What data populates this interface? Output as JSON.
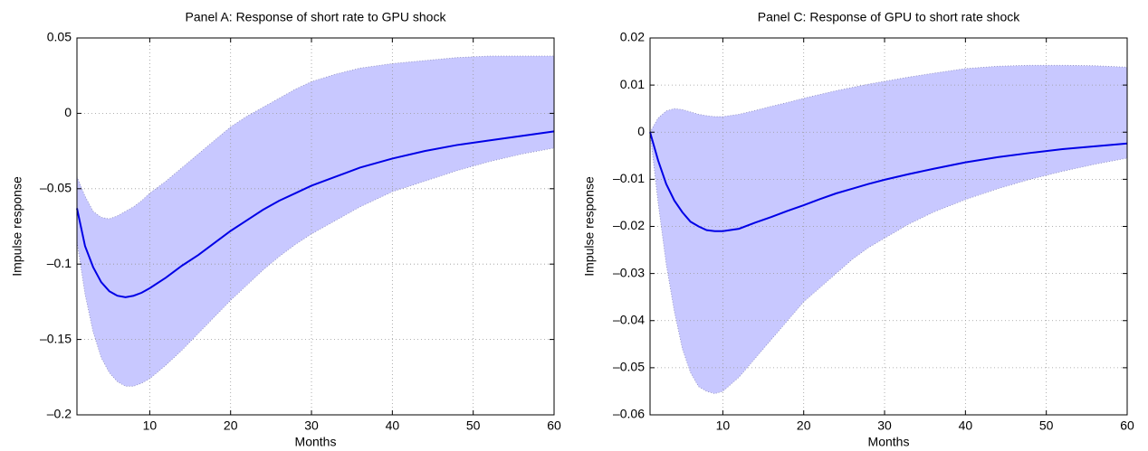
{
  "chart_data": [
    {
      "type": "line-band",
      "title": "Panel A: Response of short rate to GPU shock",
      "x_label": "Months",
      "y_label": "Impulse response",
      "x": [
        1,
        2,
        3,
        4,
        5,
        6,
        7,
        8,
        9,
        10,
        12,
        14,
        16,
        18,
        20,
        22,
        24,
        26,
        28,
        30,
        33,
        36,
        40,
        44,
        48,
        52,
        56,
        60
      ],
      "values": [
        -0.063,
        -0.088,
        -0.102,
        -0.112,
        -0.118,
        -0.121,
        -0.122,
        -0.121,
        -0.119,
        -0.116,
        -0.109,
        -0.101,
        -0.094,
        -0.086,
        -0.078,
        -0.071,
        -0.064,
        -0.058,
        -0.053,
        -0.048,
        -0.042,
        -0.036,
        -0.03,
        -0.025,
        -0.021,
        -0.018,
        -0.015,
        -0.012
      ],
      "band_upper": [
        -0.042,
        -0.055,
        -0.065,
        -0.069,
        -0.07,
        -0.068,
        -0.065,
        -0.062,
        -0.058,
        -0.053,
        -0.045,
        -0.036,
        -0.027,
        -0.018,
        -0.009,
        -0.002,
        0.004,
        0.01,
        0.016,
        0.021,
        0.026,
        0.03,
        0.033,
        0.035,
        0.037,
        0.038,
        0.038,
        0.038
      ],
      "band_lower": [
        -0.085,
        -0.12,
        -0.145,
        -0.162,
        -0.172,
        -0.178,
        -0.181,
        -0.181,
        -0.179,
        -0.176,
        -0.167,
        -0.157,
        -0.146,
        -0.135,
        -0.124,
        -0.114,
        -0.104,
        -0.095,
        -0.087,
        -0.08,
        -0.071,
        -0.062,
        -0.052,
        -0.045,
        -0.038,
        -0.032,
        -0.027,
        -0.023
      ],
      "color": "#0000e6",
      "band_color": "#c8c8ff",
      "xlim": [
        1,
        60
      ],
      "xticks": [
        10,
        20,
        30,
        40,
        50,
        60
      ],
      "ylim": [
        -0.2,
        0.05
      ],
      "yticks": [
        {
          "value": -0.2,
          "label": "–0.2"
        },
        {
          "value": -0.15,
          "label": "–0.15"
        },
        {
          "value": -0.1,
          "label": "–0.1"
        },
        {
          "value": -0.05,
          "label": "–0.05"
        },
        0,
        0.05
      ],
      "grid": true
    },
    {
      "type": "line-band",
      "title": "Panel C: Response of GPU to short rate shock",
      "x_label": "Months",
      "y_label": "Impulse response",
      "x": [
        1,
        2,
        3,
        4,
        5,
        6,
        7,
        8,
        9,
        10,
        12,
        14,
        16,
        18,
        20,
        22,
        24,
        26,
        28,
        30,
        33,
        36,
        40,
        44,
        48,
        52,
        56,
        60
      ],
      "values": [
        0,
        -0.006,
        -0.011,
        -0.0145,
        -0.017,
        -0.019,
        -0.02,
        -0.0208,
        -0.021,
        -0.021,
        -0.0205,
        -0.0192,
        -0.018,
        -0.0167,
        -0.0155,
        -0.0142,
        -0.013,
        -0.012,
        -0.011,
        -0.0101,
        -0.0089,
        -0.0078,
        -0.0064,
        -0.0053,
        -0.0044,
        -0.0036,
        -0.003,
        -0.0024
      ],
      "band_upper": [
        0,
        0.003,
        0.0045,
        0.005,
        0.0048,
        0.0043,
        0.0038,
        0.0035,
        0.0033,
        0.0033,
        0.0038,
        0.0046,
        0.0055,
        0.0063,
        0.0072,
        0.008,
        0.0088,
        0.0095,
        0.0102,
        0.0108,
        0.0117,
        0.0125,
        0.0135,
        0.014,
        0.0142,
        0.0142,
        0.0141,
        0.0138
      ],
      "band_lower": [
        0,
        -0.015,
        -0.028,
        -0.038,
        -0.046,
        -0.051,
        -0.054,
        -0.055,
        -0.0555,
        -0.055,
        -0.052,
        -0.048,
        -0.044,
        -0.04,
        -0.036,
        -0.033,
        -0.03,
        -0.027,
        -0.0245,
        -0.0225,
        -0.0195,
        -0.017,
        -0.0143,
        -0.012,
        -0.01,
        -0.0083,
        -0.0068,
        -0.0055
      ],
      "color": "#0000e6",
      "band_color": "#c8c8ff",
      "xlim": [
        1,
        60
      ],
      "xticks": [
        10,
        20,
        30,
        40,
        50,
        60
      ],
      "ylim": [
        -0.06,
        0.02
      ],
      "yticks": [
        {
          "value": -0.06,
          "label": "–0.06"
        },
        {
          "value": -0.05,
          "label": "–0.05"
        },
        {
          "value": -0.04,
          "label": "–0.04"
        },
        {
          "value": -0.03,
          "label": "–0.03"
        },
        {
          "value": -0.02,
          "label": "–0.02"
        },
        {
          "value": -0.01,
          "label": "–0.01"
        },
        0,
        0.01,
        0.02
      ],
      "grid": true
    }
  ]
}
